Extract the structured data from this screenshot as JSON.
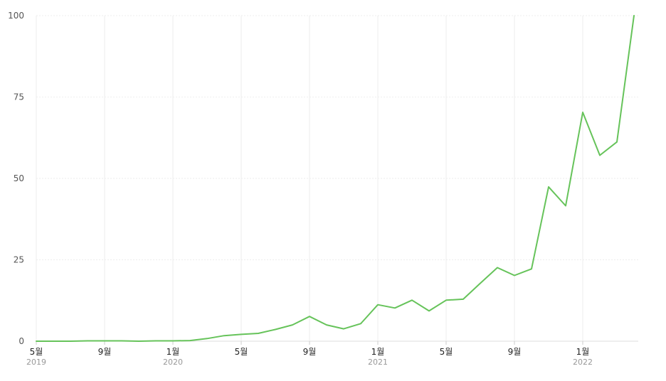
{
  "chart_data": {
    "type": "line",
    "ylim": [
      0,
      100
    ],
    "y_ticks": [
      "0",
      "25",
      "50",
      "75",
      "100"
    ],
    "y_tick_values": [
      0,
      25,
      50,
      75,
      100
    ],
    "grid": true,
    "x_ticks": [
      {
        "label": "5월",
        "year": "2019"
      },
      {
        "label": "9월",
        "year": ""
      },
      {
        "label": "1월",
        "year": "2020"
      },
      {
        "label": "5월",
        "year": ""
      },
      {
        "label": "9월",
        "year": ""
      },
      {
        "label": "1월",
        "year": "2021"
      },
      {
        "label": "5월",
        "year": ""
      },
      {
        "label": "9월",
        "year": ""
      },
      {
        "label": "1월",
        "year": "2022"
      }
    ],
    "x": [
      "2019-05",
      "2019-06",
      "2019-07",
      "2019-08",
      "2019-09",
      "2019-10",
      "2019-11",
      "2019-12",
      "2020-01",
      "2020-02",
      "2020-03",
      "2020-04",
      "2020-05",
      "2020-06",
      "2020-07",
      "2020-08",
      "2020-09",
      "2020-10",
      "2020-11",
      "2020-12",
      "2021-01",
      "2021-02",
      "2021-03",
      "2021-04",
      "2021-05",
      "2021-06",
      "2021-07",
      "2021-08",
      "2021-09",
      "2021-10",
      "2021-11",
      "2021-12",
      "2022-01",
      "2022-02",
      "2022-03",
      "2022-04"
    ],
    "series": [
      {
        "color": "#66c35a",
        "values": [
          0,
          0,
          0,
          0.1,
          0.1,
          0.1,
          0,
          0.1,
          0.1,
          0.2,
          0.8,
          1.7,
          2.1,
          2.4,
          3.6,
          5.0,
          7.6,
          5.0,
          3.8,
          5.4,
          11.2,
          10.2,
          12.6,
          9.3,
          12.6,
          12.9,
          17.8,
          22.6,
          20.2,
          22.2,
          47.4,
          41.6,
          70.3,
          57.1,
          61.2,
          100
        ]
      }
    ]
  }
}
